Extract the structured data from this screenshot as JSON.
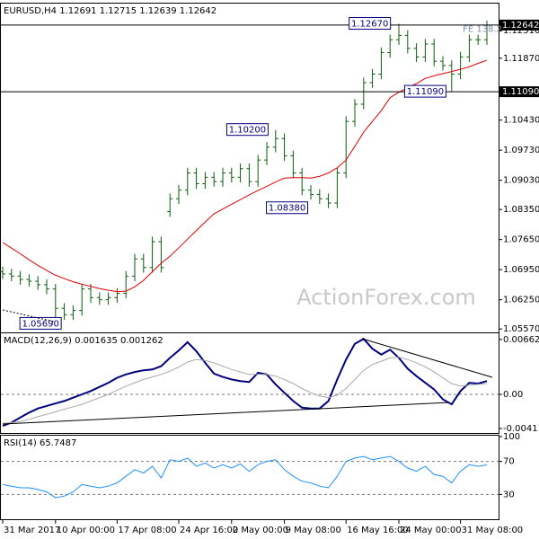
{
  "chart_data": [
    {
      "type": "ohlc",
      "title": "EURUSD,H4 1.12691 1.12715 1.12639 1.12642",
      "watermark": "ActionForex.com",
      "color": "#0b5d0b",
      "ylim": [
        1.0549,
        1.1312
      ],
      "yticks": [
        {
          "value": 1.1251,
          "label": "1.12510"
        },
        {
          "value": 1.1187,
          "label": "1.11870"
        },
        {
          "value": 1.1043,
          "label": "1.10430"
        },
        {
          "value": 1.0973,
          "label": "1.09730"
        },
        {
          "value": 1.0903,
          "label": "1.09030"
        },
        {
          "value": 1.0835,
          "label": "1.08350"
        },
        {
          "value": 1.0765,
          "label": "1.07650"
        },
        {
          "value": 1.0695,
          "label": "1.06950"
        },
        {
          "value": 1.0625,
          "label": "1.06250"
        },
        {
          "value": 1.0557,
          "label": "1.05570"
        }
      ],
      "markers": [
        {
          "value": 1.12642,
          "label": "1.12642"
        },
        {
          "value": 1.1109,
          "label": "1.11090"
        }
      ],
      "open": [
        1.069,
        1.0685,
        1.068,
        1.0672,
        1.0668,
        1.066,
        1.065,
        1.0605,
        1.059,
        1.06,
        1.065,
        1.063,
        1.0625,
        1.063,
        1.064,
        1.068,
        1.072,
        1.07,
        1.076,
        1.083,
        1.086,
        1.088,
        1.092,
        1.0895,
        1.091,
        1.09,
        1.092,
        1.091,
        1.093,
        1.09,
        1.095,
        1.098,
        1.1,
        1.096,
        1.092,
        1.088,
        1.087,
        1.086,
        1.085,
        1.092,
        1.104,
        1.108,
        1.113,
        1.115,
        1.12,
        1.123,
        1.124,
        1.121,
        1.119,
        1.122,
        1.118,
        1.117,
        1.115,
        1.119,
        1.123,
        1.123
      ],
      "high": [
        1.0702,
        1.0697,
        1.0692,
        1.0684,
        1.068,
        1.0672,
        1.0662,
        1.0617,
        1.0612,
        1.0662,
        1.0662,
        1.0642,
        1.0642,
        1.0652,
        1.0692,
        1.0732,
        1.0732,
        1.0772,
        1.0772,
        1.0872,
        1.0892,
        1.0932,
        1.0932,
        1.0922,
        1.0922,
        1.0932,
        1.0932,
        1.0942,
        1.0942,
        1.0962,
        1.0992,
        1.102,
        1.1012,
        1.0972,
        1.0932,
        1.0892,
        1.0882,
        1.0872,
        1.0932,
        1.1052,
        1.1092,
        1.1142,
        1.1162,
        1.1212,
        1.1242,
        1.1267,
        1.1252,
        1.1222,
        1.1232,
        1.1232,
        1.1192,
        1.1182,
        1.1202,
        1.1242,
        1.1242,
        1.1275
      ],
      "low": [
        1.0673,
        1.0668,
        1.066,
        1.0656,
        1.0648,
        1.0638,
        1.0569,
        1.0578,
        1.0578,
        1.0588,
        1.0618,
        1.0613,
        1.0613,
        1.0618,
        1.0628,
        1.0668,
        1.0688,
        1.0688,
        1.0688,
        1.0818,
        1.0848,
        1.0868,
        1.0883,
        1.0883,
        1.0888,
        1.0888,
        1.0898,
        1.0898,
        1.0888,
        1.0888,
        1.0938,
        1.0968,
        1.0948,
        1.0908,
        1.0868,
        1.0858,
        1.0848,
        1.0838,
        1.0838,
        1.0908,
        1.1028,
        1.1068,
        1.1118,
        1.1138,
        1.1188,
        1.1218,
        1.1198,
        1.1178,
        1.1178,
        1.1168,
        1.1158,
        1.1109,
        1.1138,
        1.1178,
        1.1218,
        1.1218
      ],
      "close": [
        1.0685,
        1.068,
        1.0672,
        1.0668,
        1.066,
        1.065,
        1.0605,
        1.059,
        1.06,
        1.065,
        1.063,
        1.0625,
        1.063,
        1.064,
        1.068,
        1.072,
        1.07,
        1.076,
        1.07,
        1.086,
        1.088,
        1.092,
        1.0895,
        1.091,
        1.09,
        1.092,
        1.091,
        1.093,
        1.09,
        1.095,
        1.098,
        1.1,
        1.096,
        1.092,
        1.088,
        1.087,
        1.086,
        1.085,
        1.092,
        1.104,
        1.108,
        1.113,
        1.115,
        1.12,
        1.123,
        1.124,
        1.121,
        1.119,
        1.122,
        1.118,
        1.117,
        1.115,
        1.119,
        1.123,
        1.123,
        1.1264
      ],
      "moving_average": {
        "color": "#e00000",
        "values": [
          1.0758,
          1.0745,
          1.0732,
          1.0718,
          1.0705,
          1.0693,
          1.0682,
          1.0674,
          1.0667,
          1.0661,
          1.0656,
          1.0651,
          1.0647,
          1.0644,
          1.0645,
          1.0655,
          1.067,
          1.069,
          1.071,
          1.0726,
          1.0746,
          1.0766,
          1.0786,
          1.0806,
          1.0825,
          1.0836,
          1.0847,
          1.0858,
          1.0869,
          1.0879,
          1.0889,
          1.0899,
          1.0908,
          1.0909,
          1.0909,
          1.0908,
          1.0912,
          1.092,
          1.0932,
          1.095,
          1.0982,
          1.1015,
          1.104,
          1.1065,
          1.1095,
          1.1108,
          1.1118,
          1.1128,
          1.114,
          1.1146,
          1.1151,
          1.1156,
          1.1161,
          1.1167,
          1.1175,
          1.1182
        ]
      },
      "annotations": [
        {
          "text": "1.12670",
          "x": 41.7,
          "y": 1.1267,
          "boxed": true
        },
        {
          "text": "1.11090",
          "x": 48,
          "y": 1.1109,
          "boxed": true
        },
        {
          "text": "1.10200",
          "x": 27.8,
          "y": 1.102,
          "boxed": true
        },
        {
          "text": "1.08380",
          "x": 32.3,
          "y": 1.0838,
          "boxed": true
        },
        {
          "text": "1.05690",
          "x": 4.3,
          "y": 1.0569,
          "boxed": true
        },
        {
          "text": "FE 138.2",
          "x": 54.5,
          "y": 1.1255,
          "boxed": false
        }
      ]
    },
    {
      "type": "line",
      "title": "MACD(12,26,9) 0.001635 0.001262",
      "ylim": [
        -0.00466,
        0.00726
      ],
      "yticks": [
        0.006624,
        {
          "value": 0,
          "label": "0.00"
        },
        -0.004116
      ],
      "levels": [
        0
      ],
      "lines": [
        {
          "color": "#00007f",
          "width": 2,
          "values": [
            -0.0038,
            -0.0034,
            -0.0028,
            -0.0022,
            -0.0017,
            -0.0014,
            -0.0011,
            -0.0008,
            -0.0004,
            0.0,
            0.0004,
            0.0009,
            0.0014,
            0.002,
            0.0024,
            0.0027,
            0.0029,
            0.003,
            0.0034,
            0.0044,
            0.0053,
            0.0063,
            0.0052,
            0.0038,
            0.0025,
            0.0021,
            0.0018,
            0.0016,
            0.0015,
            0.0026,
            0.0024,
            0.0012,
            0.0002,
            -0.0008,
            -0.0016,
            -0.0017,
            -0.0017,
            -0.0008,
            0.0018,
            0.0042,
            0.0061,
            0.0067,
            0.0055,
            0.0048,
            0.0054,
            0.0044,
            0.0031,
            0.0022,
            0.0014,
            0.0006,
            -0.0006,
            -0.0012,
            0.0004,
            0.0014,
            0.0013,
            0.0016
          ]
        },
        {
          "color": "#a8a8a8",
          "width": 1,
          "values": [
            -0.0035,
            -0.0034,
            -0.0033,
            -0.003,
            -0.0027,
            -0.0024,
            -0.0021,
            -0.0018,
            -0.0015,
            -0.0012,
            -0.0008,
            -0.0004,
            0.0,
            0.0005,
            0.001,
            0.0014,
            0.0018,
            0.0021,
            0.0024,
            0.0028,
            0.0033,
            0.0039,
            0.0042,
            0.0041,
            0.0038,
            0.0034,
            0.003,
            0.0027,
            0.0024,
            0.0024,
            0.0024,
            0.0022,
            0.0018,
            0.0013,
            0.0007,
            0.0002,
            -0.0002,
            -0.0004,
            -0.0001,
            0.0007,
            0.0018,
            0.0029,
            0.0036,
            0.004,
            0.0044,
            0.0045,
            0.0042,
            0.0038,
            0.0033,
            0.0027,
            0.002,
            0.0013,
            0.001,
            0.0011,
            0.0012,
            0.0013
          ]
        }
      ]
    },
    {
      "type": "line",
      "title": "RSI(14) 65.7487",
      "ylim": [
        0,
        100
      ],
      "yticks": [
        100,
        70,
        30
      ],
      "levels": [
        70,
        30
      ],
      "lines": [
        {
          "color": "#1e90ff",
          "width": 1,
          "values": [
            42,
            40,
            38,
            38,
            36,
            33,
            26,
            28,
            33,
            42,
            40,
            38,
            40,
            44,
            52,
            60,
            56,
            64,
            50,
            72,
            70,
            74,
            64,
            68,
            62,
            66,
            62,
            67,
            58,
            66,
            70,
            72,
            60,
            52,
            46,
            44,
            40,
            38,
            52,
            70,
            74,
            76,
            72,
            74,
            76,
            70,
            62,
            58,
            64,
            54,
            52,
            44,
            58,
            66,
            64,
            65.7487
          ]
        }
      ],
      "xticks": [
        {
          "value": 0,
          "label": "31 Mar 2017"
        },
        {
          "value": 6,
          "label": "10 Apr 00:00"
        },
        {
          "value": 13,
          "label": "17 Apr 08:00"
        },
        {
          "value": 20,
          "label": "24 Apr 16:00"
        },
        {
          "value": 26,
          "label": "2 May 00:00"
        },
        {
          "value": 32,
          "label": "9 May 08:00"
        },
        {
          "value": 39,
          "label": "16 May 16:00"
        },
        {
          "value": 45,
          "label": "24 May 00:00"
        },
        {
          "value": 52,
          "label": "31 May 08:00"
        }
      ]
    }
  ]
}
